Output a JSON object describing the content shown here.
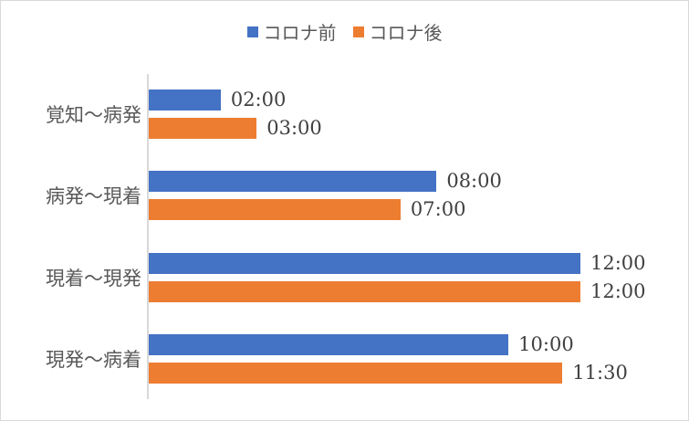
{
  "chart_data": {
    "type": "bar",
    "orientation": "horizontal",
    "title": "",
    "xlabel": "",
    "ylabel": "",
    "categories": [
      "覚知〜病発",
      "病発〜現着",
      "現着〜現発",
      "現発〜病着"
    ],
    "series": [
      {
        "name": "コロナ前",
        "color": "#4472C4",
        "values": [
          2.0,
          8.0,
          12.0,
          10.0
        ],
        "labels": [
          "02:00",
          "08:00",
          "12:00",
          "10:00"
        ]
      },
      {
        "name": "コロナ後",
        "color": "#ED7D31",
        "values": [
          3.0,
          7.0,
          12.0,
          11.5
        ],
        "labels": [
          "03:00",
          "07:00",
          "12:00",
          "11:30"
        ]
      }
    ],
    "value_unit": "hours (mm:ss/hh:mm formatted)",
    "grid": false,
    "legend_position": "top",
    "xlim": [
      0,
      12
    ]
  },
  "legend": {
    "items": [
      {
        "label": "コロナ前",
        "color": "#4472C4"
      },
      {
        "label": "コロナ後",
        "color": "#ED7D31"
      }
    ]
  },
  "categories": [
    {
      "label": "覚知〜病発",
      "before": "02:00",
      "after": "03:00"
    },
    {
      "label": "病発〜現着",
      "before": "08:00",
      "after": "07:00"
    },
    {
      "label": "現着〜現発",
      "before": "12:00",
      "after": "12:00"
    },
    {
      "label": "現発〜病着",
      "before": "10:00",
      "after": "11:30"
    }
  ]
}
